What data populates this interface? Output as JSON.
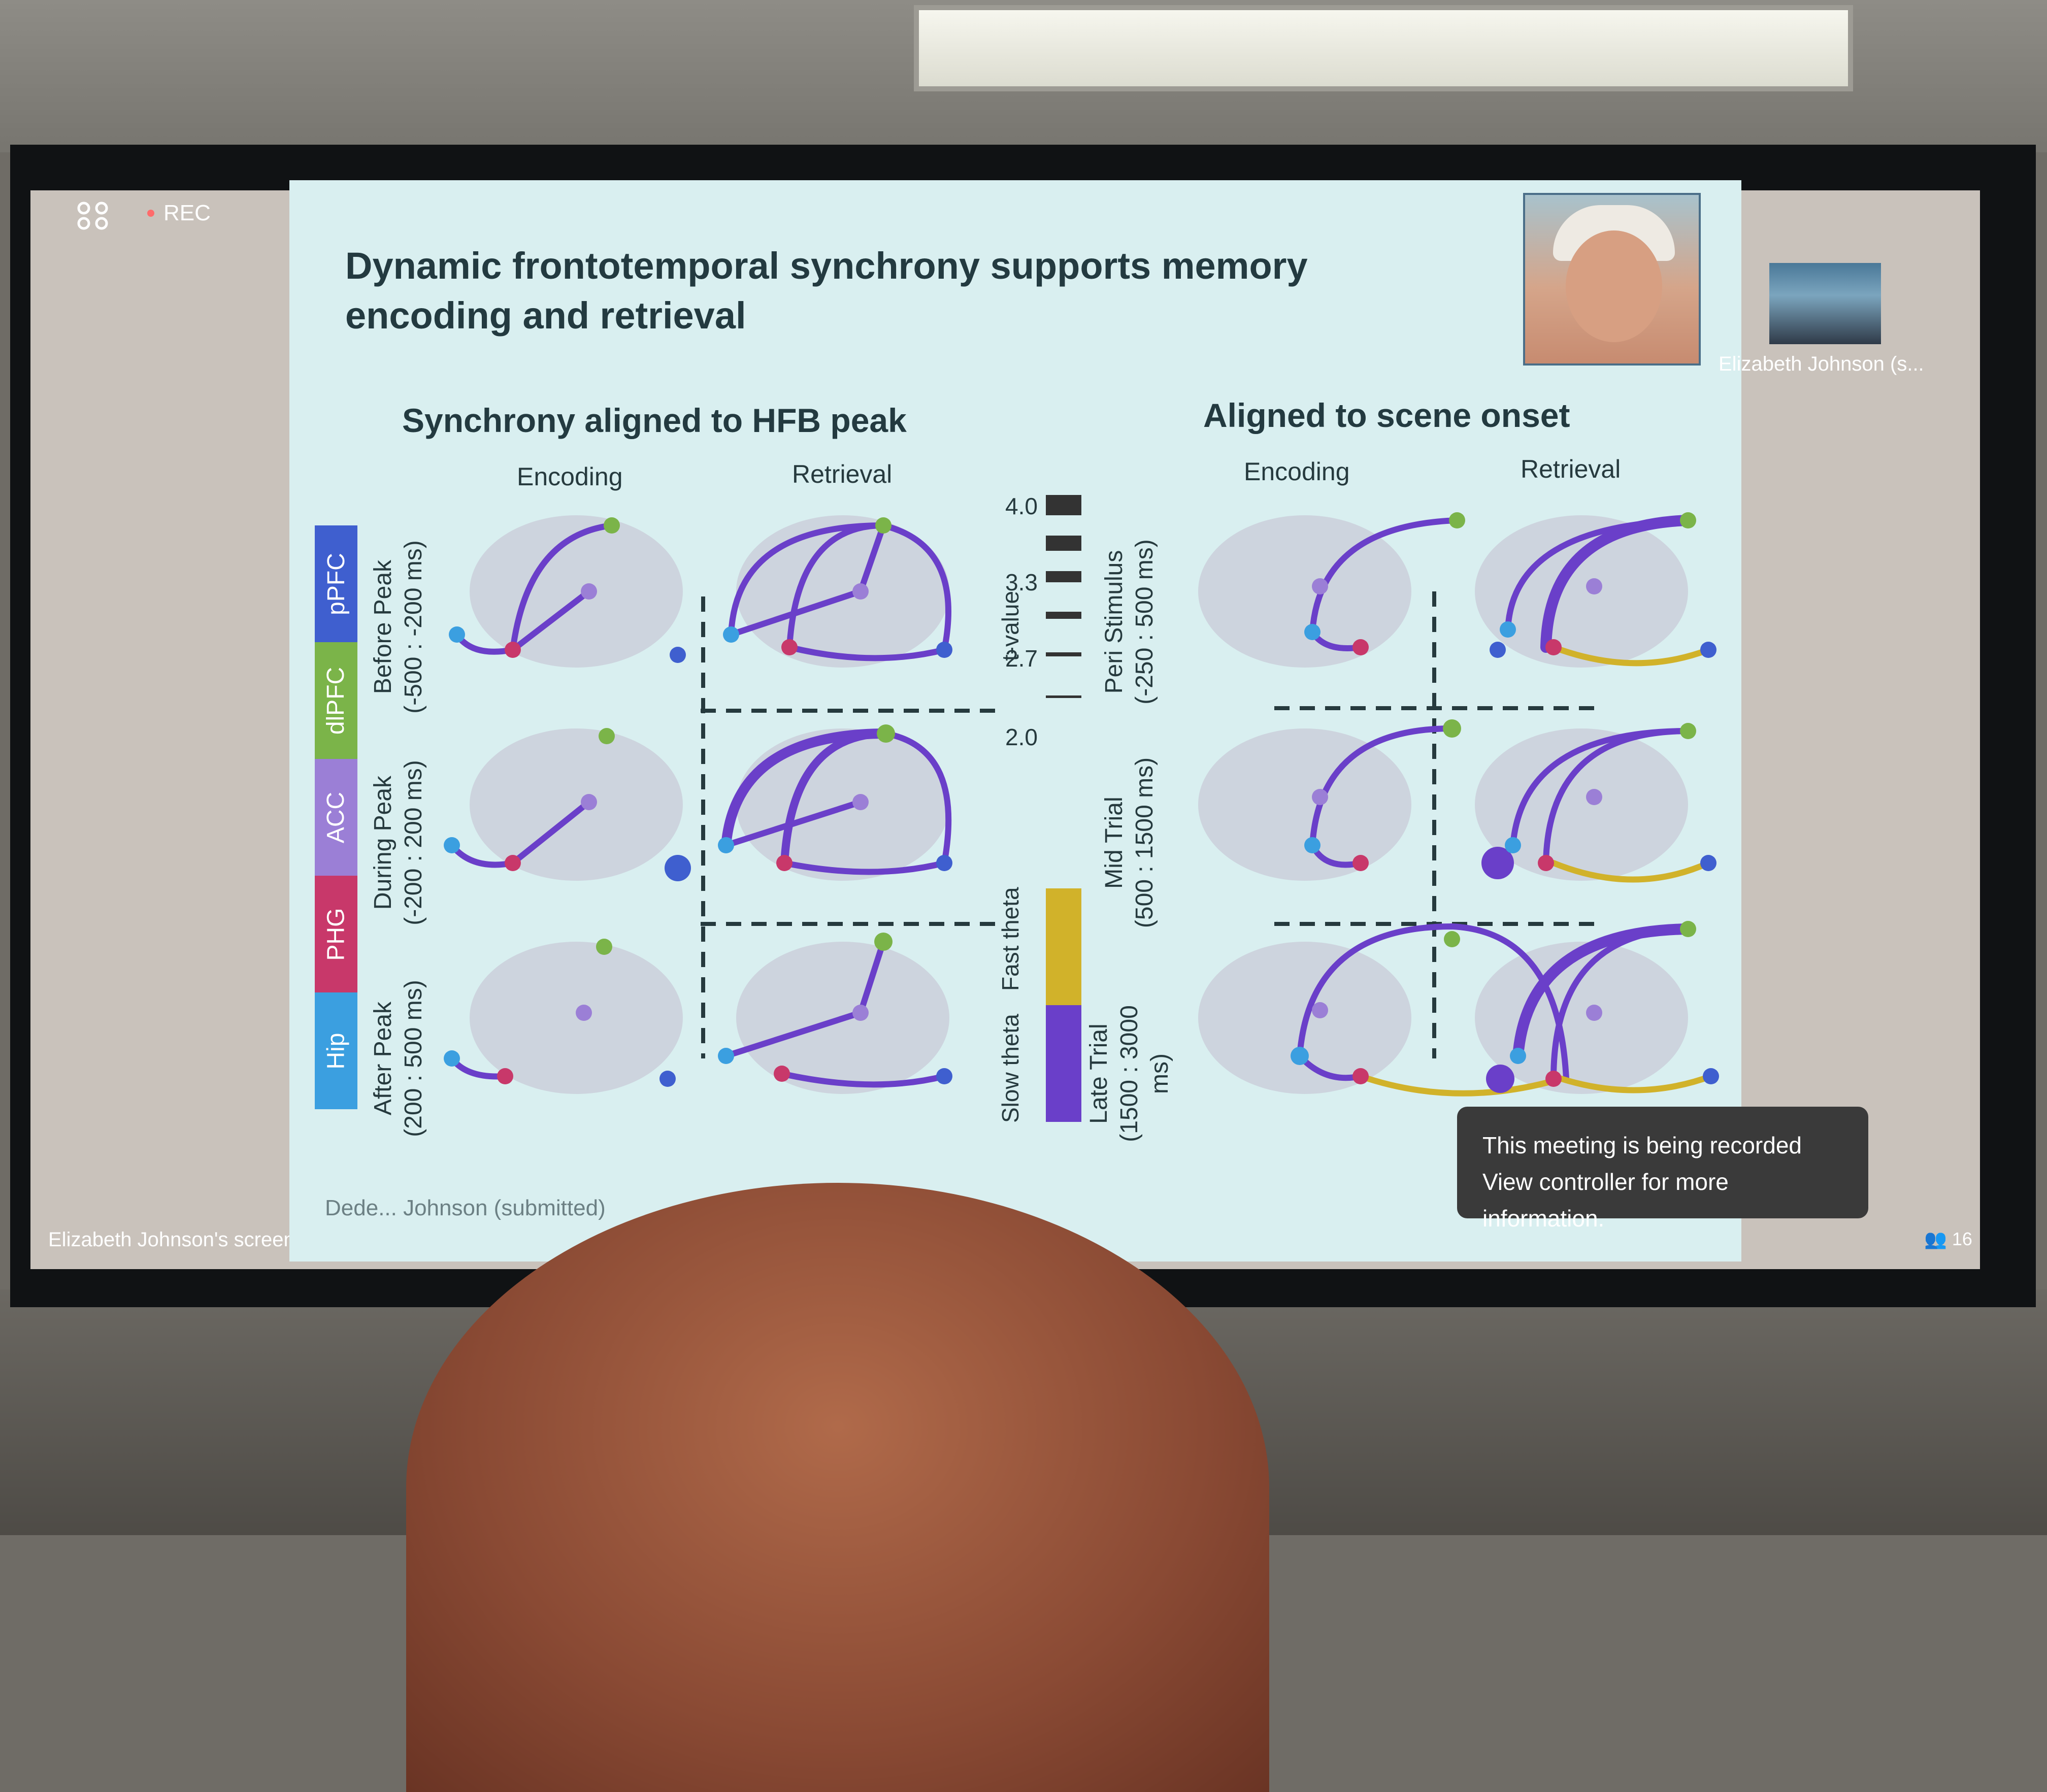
{
  "meeting": {
    "rec_label": "REC",
    "screen_share_label": "Elizabeth Johnson's screen",
    "participant_name": "Elizabeth Johnson (s...",
    "participant_count": "16",
    "toast_line1": "This meeting is being recorded",
    "toast_line2": "View controller for more information."
  },
  "slide": {
    "title_line1": "Dynamic frontotemporal synchrony supports memory",
    "title_line2": "encoding and retrieval",
    "left_section": "Synchrony aligned to HFB peak",
    "right_section": "Aligned to scene onset",
    "col_encoding": "Encoding",
    "col_retrieval": "Retrieval",
    "left_rows": [
      {
        "name": "Before Peak",
        "range": "(-500 : -200 ms)"
      },
      {
        "name": "During Peak",
        "range": "(-200 : 200 ms)"
      },
      {
        "name": "After Peak",
        "range": "(200 : 500 ms)"
      }
    ],
    "right_rows": [
      {
        "name": "Peri Stimulus",
        "range": "(-250 : 500 ms)"
      },
      {
        "name": "Mid Trial",
        "range": "(500 : 1500 ms)"
      },
      {
        "name": "Late Trial",
        "range": "(1500 : 3000 ms)"
      }
    ],
    "regions": [
      {
        "label": "pPFC",
        "color": "#3f5fcf"
      },
      {
        "label": "dlPFC",
        "color": "#7bb449"
      },
      {
        "label": "ACC",
        "color": "#9b7fd6"
      },
      {
        "label": "PHG",
        "color": "#c8386a"
      },
      {
        "label": "Hip",
        "color": "#3b9fe0"
      }
    ],
    "legend": {
      "tvalue_label": "t-value",
      "ticks": [
        "4.0",
        "3.3",
        "2.7",
        "2.0"
      ],
      "slow_theta": "Slow theta",
      "fast_theta": "Fast theta",
      "slow_color": "#6a3fc9",
      "fast_color": "#d1b22a"
    },
    "footer": "Dede... Johnson (submitted)"
  }
}
